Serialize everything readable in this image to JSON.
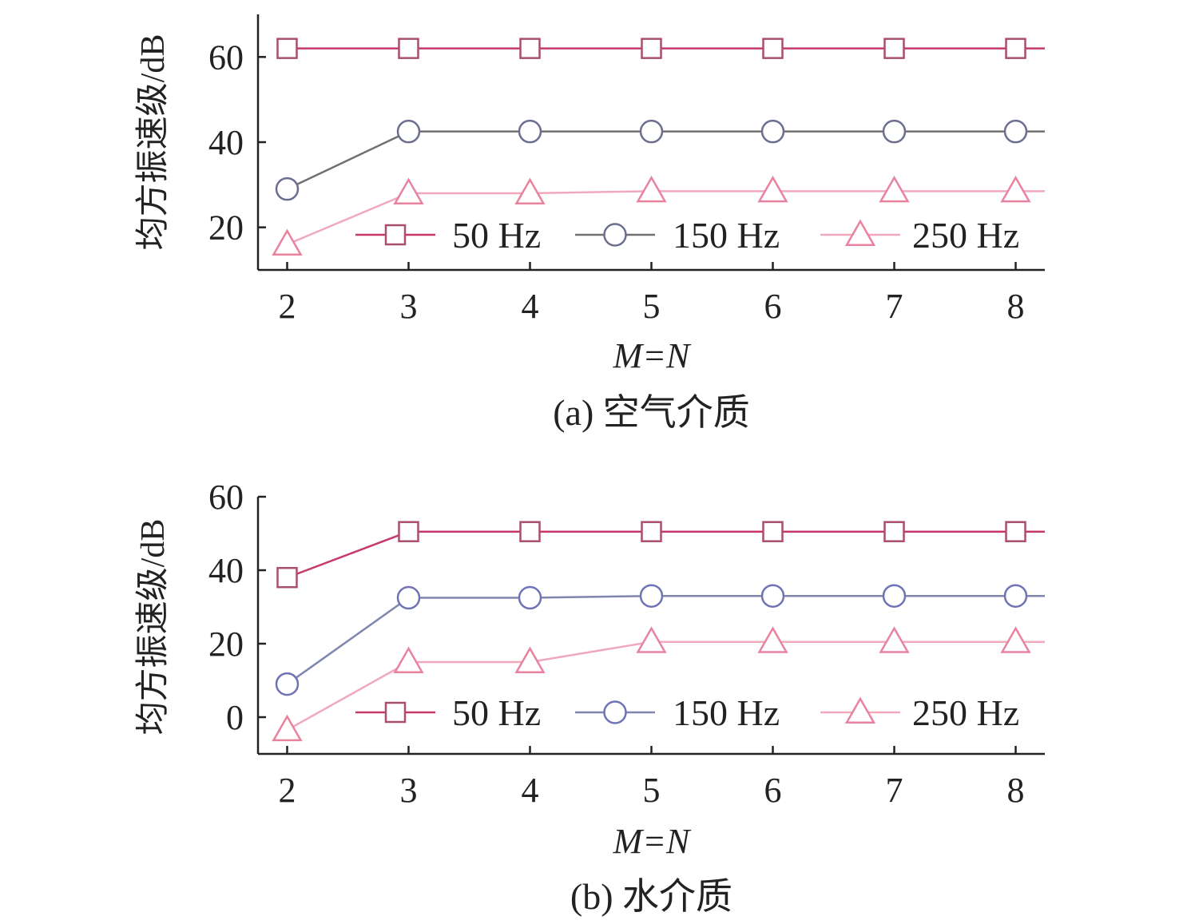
{
  "colors": {
    "axis": "#222222",
    "text": "#222222",
    "marker_fill": "#ffffff"
  },
  "chart_data": [
    {
      "type": "line",
      "caption": "(a) 空气介质",
      "xlabel": "M=N",
      "ylabel": "均方振速级/dB",
      "x": [
        2,
        3,
        4,
        5,
        6,
        7,
        8
      ],
      "xlim": [
        1.76,
        8.24
      ],
      "ylim": [
        10,
        70
      ],
      "yticks": [
        20,
        40,
        60
      ],
      "grid": false,
      "legend_position": "bottom-right",
      "series": [
        {
          "name": "50 Hz",
          "values": [
            62,
            62,
            62,
            62,
            62,
            62,
            62
          ],
          "marker": "square",
          "line_color": "#c8386f",
          "marker_color": "#a84f6e"
        },
        {
          "name": "150 Hz",
          "values": [
            29,
            42.5,
            42.5,
            42.5,
            42.5,
            42.5,
            42.5
          ],
          "marker": "circle",
          "line_color": "#707070",
          "marker_color": "#6a6e8f"
        },
        {
          "name": "250 Hz",
          "values": [
            16,
            28,
            28,
            28.5,
            28.5,
            28.5,
            28.5
          ],
          "marker": "triangle",
          "line_color": "#f0a8bd",
          "marker_color": "#e8829f"
        }
      ]
    },
    {
      "type": "line",
      "caption": "(b) 水介质",
      "xlabel": "M=N",
      "ylabel": "均方振速级/dB",
      "x": [
        2,
        3,
        4,
        5,
        6,
        7,
        8
      ],
      "xlim": [
        1.76,
        8.24
      ],
      "ylim": [
        -10,
        60
      ],
      "yticks": [
        0,
        20,
        40,
        60
      ],
      "grid": false,
      "legend_position": "bottom-right",
      "series": [
        {
          "name": "50 Hz",
          "values": [
            38,
            50.5,
            50.5,
            50.5,
            50.5,
            50.5,
            50.5
          ],
          "marker": "square",
          "line_color": "#c8386f",
          "marker_color": "#a84f6e"
        },
        {
          "name": "150 Hz",
          "values": [
            9,
            32.5,
            32.5,
            33,
            33,
            33,
            33
          ],
          "marker": "circle",
          "line_color": "#7f86b0",
          "marker_color": "#6f72b5"
        },
        {
          "name": "250 Hz",
          "values": [
            -3.5,
            15,
            15,
            20.5,
            20.5,
            20.5,
            20.5
          ],
          "marker": "triangle",
          "line_color": "#f0a8bd",
          "marker_color": "#e8829f"
        }
      ]
    }
  ]
}
